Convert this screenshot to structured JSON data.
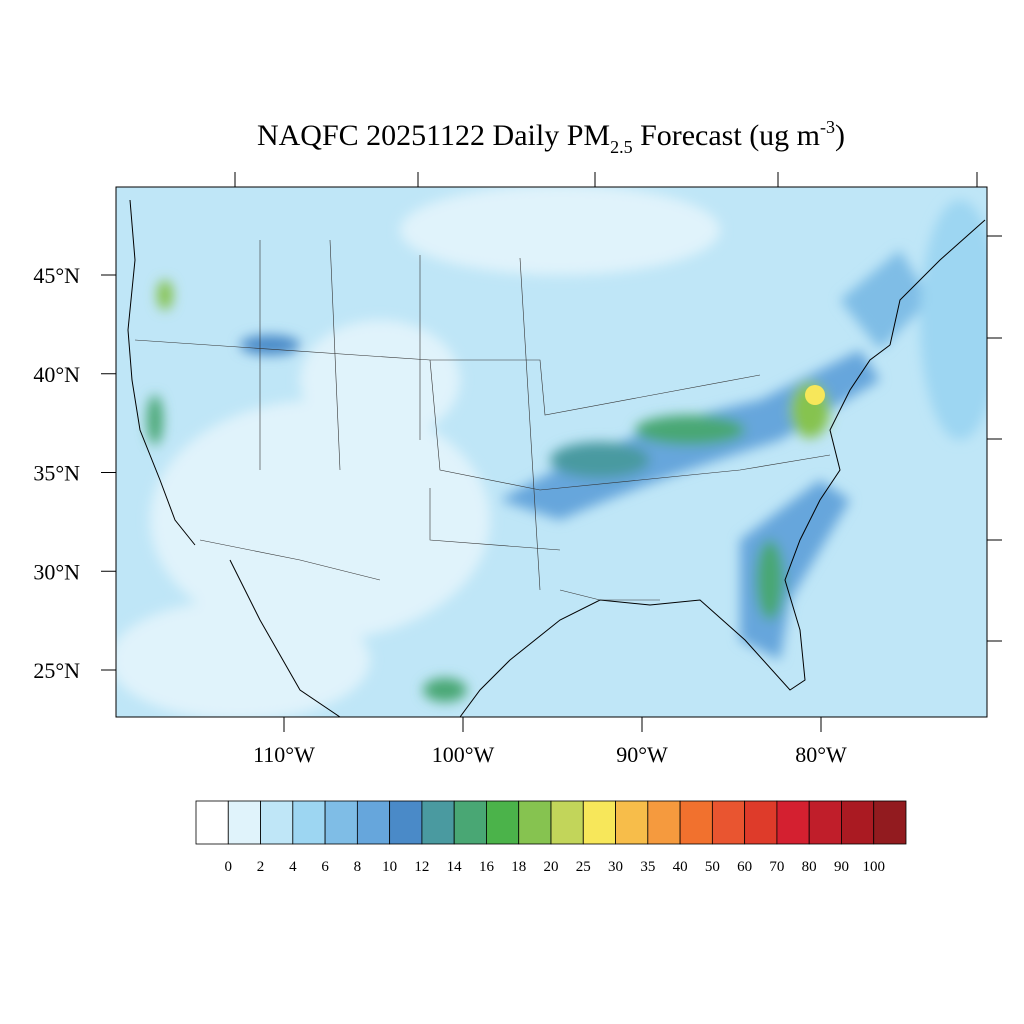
{
  "map_data": {
    "title": {
      "main": "NAQFC 20251122 Daily PM",
      "sub": "2.5",
      "mid": " Forecast (ug m",
      "sup": "-3",
      "end": ")"
    },
    "lat_ticks": [
      {
        "value": 45,
        "label": "45°N"
      },
      {
        "value": 40,
        "label": "40°N"
      },
      {
        "value": 35,
        "label": "35°N"
      },
      {
        "value": 30,
        "label": "30°N"
      },
      {
        "value": 25,
        "label": "25°N"
      }
    ],
    "lon_ticks": [
      {
        "value": -110,
        "label": "110°W"
      },
      {
        "value": -100,
        "label": "100°W"
      },
      {
        "value": -90,
        "label": "90°W"
      },
      {
        "value": -80,
        "label": "80°W"
      }
    ],
    "colorbar": {
      "levels": [
        0,
        2,
        4,
        6,
        8,
        10,
        12,
        14,
        16,
        18,
        20,
        25,
        30,
        35,
        40,
        50,
        60,
        70,
        80,
        90,
        100
      ],
      "colors": [
        "#ffffff",
        "#e0f3fb",
        "#bfe6f7",
        "#9dd6f2",
        "#7fbde6",
        "#66a6dc",
        "#4a8ac8",
        "#4a9aa0",
        "#49a774",
        "#4bb34a",
        "#86c350",
        "#c2d55a",
        "#f7e75a",
        "#f7bd4a",
        "#f59a3e",
        "#f1712e",
        "#e95530",
        "#de3b2a",
        "#d42030",
        "#c01e2a",
        "#aa1a22",
        "#921b1f"
      ]
    }
  }
}
